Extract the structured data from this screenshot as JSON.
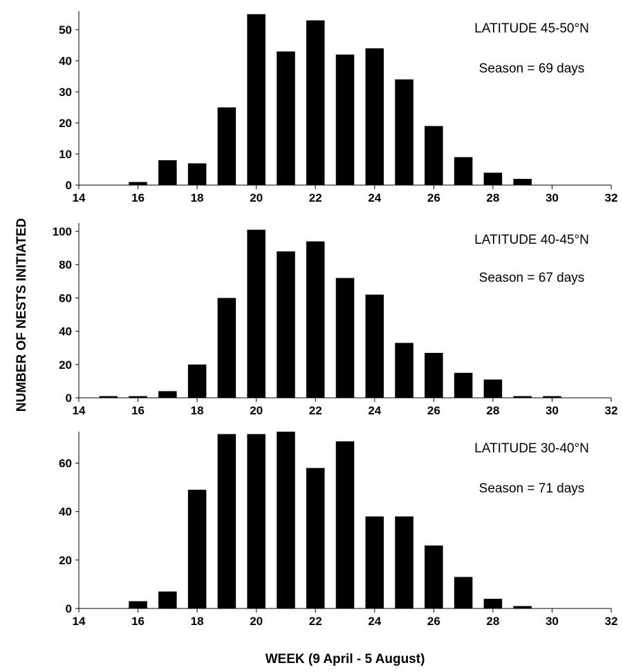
{
  "chart_data": [
    {
      "type": "bar",
      "annotations": [
        "LATITUDE 45-50°N",
        "Season = 69 days"
      ],
      "x": [
        16,
        17,
        18,
        19,
        20,
        21,
        22,
        23,
        24,
        25,
        26,
        27,
        28,
        29
      ],
      "values": [
        1,
        8,
        7,
        25,
        55,
        43,
        53,
        42,
        44,
        34,
        19,
        9,
        4,
        2
      ],
      "xlim": [
        14,
        32
      ],
      "xticks": [
        14,
        16,
        18,
        20,
        22,
        24,
        26,
        28,
        30,
        32
      ],
      "ylim": [
        0,
        56
      ],
      "yticks": [
        0,
        10,
        20,
        30,
        40,
        50
      ],
      "bar_color": "#000000",
      "grid": false
    },
    {
      "type": "bar",
      "annotations": [
        "LATITUDE 40-45°N",
        "Season = 67 days"
      ],
      "x": [
        15,
        16,
        17,
        18,
        19,
        20,
        21,
        22,
        23,
        24,
        25,
        26,
        27,
        28,
        29,
        30
      ],
      "values": [
        1,
        1,
        4,
        20,
        60,
        101,
        88,
        94,
        72,
        62,
        33,
        27,
        15,
        11,
        1,
        1
      ],
      "xlim": [
        14,
        32
      ],
      "xticks": [
        14,
        16,
        18,
        20,
        22,
        24,
        26,
        28,
        30,
        32
      ],
      "ylim": [
        0,
        105
      ],
      "yticks": [
        0,
        20,
        40,
        60,
        80,
        100
      ],
      "bar_color": "#000000",
      "grid": false
    },
    {
      "type": "bar",
      "annotations": [
        "LATITUDE 30-40°N",
        "Season = 71 days"
      ],
      "x": [
        16,
        17,
        18,
        19,
        20,
        21,
        22,
        23,
        24,
        25,
        26,
        27,
        28,
        29
      ],
      "values": [
        3,
        7,
        49,
        72,
        72,
        73,
        58,
        69,
        38,
        38,
        26,
        13,
        4,
        1
      ],
      "xlim": [
        14,
        32
      ],
      "xticks": [
        14,
        16,
        18,
        20,
        22,
        24,
        26,
        28,
        30,
        32
      ],
      "ylim": [
        0,
        73
      ],
      "yticks": [
        0,
        20,
        40,
        60
      ],
      "bar_color": "#000000",
      "grid": false
    }
  ],
  "ylabel": "NUMBER OF NESTS INITIATED",
  "xlabel": "WEEK (9 April - 5 August)"
}
